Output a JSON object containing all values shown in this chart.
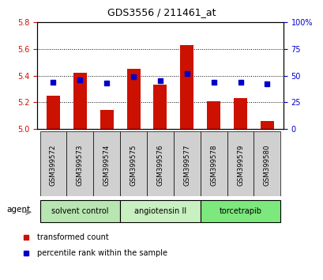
{
  "title": "GDS3556 / 211461_at",
  "samples": [
    "GSM399572",
    "GSM399573",
    "GSM399574",
    "GSM399575",
    "GSM399576",
    "GSM399577",
    "GSM399578",
    "GSM399579",
    "GSM399580"
  ],
  "transformed_counts": [
    5.25,
    5.42,
    5.14,
    5.45,
    5.33,
    5.63,
    5.21,
    5.23,
    5.06
  ],
  "percentile_ranks": [
    44,
    46,
    43,
    49,
    45,
    52,
    44,
    44,
    42
  ],
  "ylim_left": [
    5.0,
    5.8
  ],
  "ylim_right": [
    0,
    100
  ],
  "yticks_left": [
    5.0,
    5.2,
    5.4,
    5.6,
    5.8
  ],
  "yticks_right": [
    0,
    25,
    50,
    75,
    100
  ],
  "bar_color": "#cc1100",
  "dot_color": "#0000cc",
  "groups": [
    {
      "label": "solvent control",
      "start": 0,
      "end": 3,
      "color": "#b8e6b0"
    },
    {
      "label": "angiotensin II",
      "start": 3,
      "end": 6,
      "color": "#c8f0c0"
    },
    {
      "label": "torcetrapib",
      "start": 6,
      "end": 9,
      "color": "#7de87d"
    }
  ],
  "xlabel_agent": "agent",
  "legend_bar": "transformed count",
  "legend_dot": "percentile rank within the sample",
  "bar_width": 0.5,
  "background_color": "#ffffff",
  "ticklabel_area_color": "#d0d0d0",
  "left_tick_color": "#cc1100",
  "right_tick_color": "#0000cc"
}
